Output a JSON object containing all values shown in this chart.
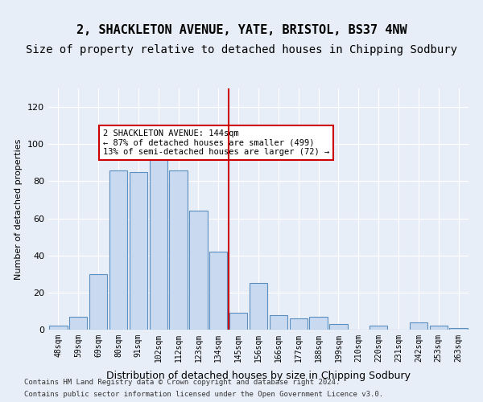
{
  "title1": "2, SHACKLETON AVENUE, YATE, BRISTOL, BS37 4NW",
  "title2": "Size of property relative to detached houses in Chipping Sodbury",
  "xlabel": "Distribution of detached houses by size in Chipping Sodbury",
  "ylabel": "Number of detached properties",
  "bar_labels": [
    "48sqm",
    "59sqm",
    "69sqm",
    "80sqm",
    "91sqm",
    "102sqm",
    "112sqm",
    "123sqm",
    "134sqm",
    "145sqm",
    "156sqm",
    "166sqm",
    "177sqm",
    "188sqm",
    "199sqm",
    "210sqm",
    "220sqm",
    "231sqm",
    "242sqm",
    "253sqm",
    "263sqm"
  ],
  "bar_values": [
    2,
    7,
    30,
    86,
    85,
    97,
    86,
    64,
    42,
    9,
    25,
    8,
    6,
    7,
    3,
    0,
    2,
    0,
    4,
    2,
    1
  ],
  "bar_color": "#c8d9f0",
  "bar_edge_color": "#5a8fc0",
  "ylim": [
    0,
    130
  ],
  "yticks": [
    0,
    20,
    40,
    60,
    80,
    100,
    120
  ],
  "vline_x": 8.5,
  "vline_color": "#cc0000",
  "annotation_title": "2 SHACKLETON AVENUE: 144sqm",
  "annotation_line1": "← 87% of detached houses are smaller (499)",
  "annotation_line2": "13% of semi-detached houses are larger (72) →",
  "annotation_box_color": "#cc0000",
  "footer1": "Contains HM Land Registry data © Crown copyright and database right 2024.",
  "footer2": "Contains public sector information licensed under the Open Government Licence v3.0.",
  "bg_color": "#e8eef8",
  "plot_bg_color": "#e8eef8",
  "title1_fontsize": 11,
  "title2_fontsize": 10
}
